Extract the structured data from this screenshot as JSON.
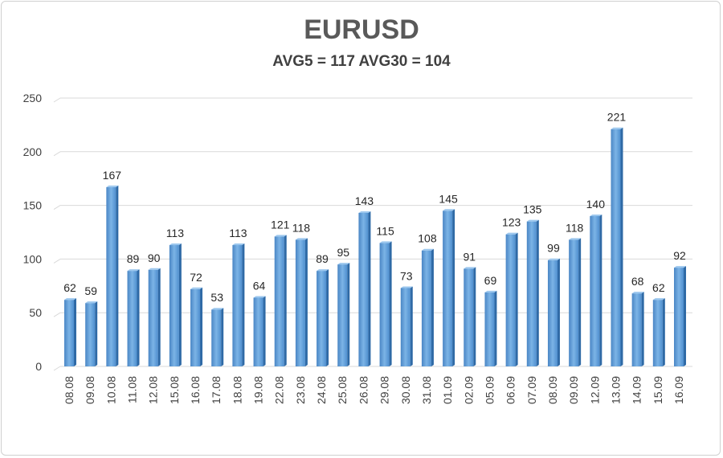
{
  "chart_data": {
    "type": "bar",
    "title": "EURUSD",
    "subtitle": "AVG5 = 117 AVG30 = 104",
    "xlabel": "",
    "ylabel": "",
    "ylim": [
      0,
      250
    ],
    "yticks": [
      0,
      50,
      100,
      150,
      200,
      250
    ],
    "grid": true,
    "legend": "none",
    "categories": [
      "08.08",
      "09.08",
      "10.08",
      "11.08",
      "12.08",
      "15.08",
      "16.08",
      "17.08",
      "18.08",
      "19.08",
      "22.08",
      "23.08",
      "24.08",
      "25.08",
      "26.08",
      "29.08",
      "30.08",
      "31.08",
      "01.09",
      "02.09",
      "05.09",
      "06.09",
      "07.09",
      "08.09",
      "09.09",
      "12.09",
      "13.09",
      "14.09",
      "15.09",
      "16.09"
    ],
    "values": [
      62,
      59,
      167,
      89,
      90,
      113,
      72,
      53,
      113,
      64,
      121,
      118,
      89,
      95,
      143,
      115,
      73,
      108,
      145,
      91,
      69,
      123,
      135,
      99,
      118,
      140,
      221,
      68,
      62,
      92
    ],
    "bar_color": "#5b9bd5"
  }
}
